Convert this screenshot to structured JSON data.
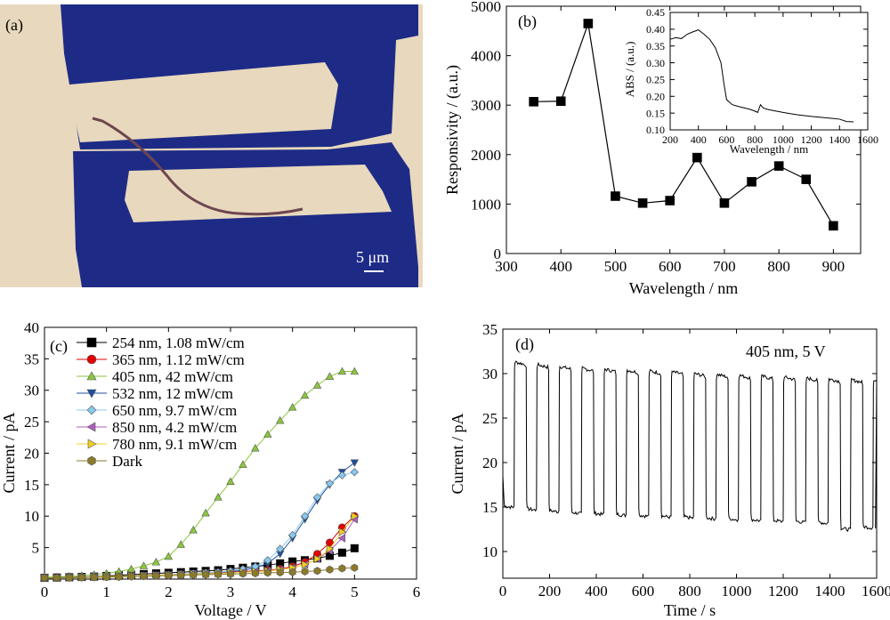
{
  "panels": {
    "a": {
      "tag": "(a)",
      "scale_bar_label": "5 μm"
    },
    "b": {
      "tag": "(b)"
    },
    "c": {
      "tag": "(c)"
    },
    "d": {
      "tag": "(d)",
      "annotation": "405 nm, 5 V"
    }
  },
  "colors": {
    "substrate": "#e8d8bd",
    "electrode": "#1e2b86",
    "wire": "#6d4650"
  },
  "chart_data": [
    {
      "panel": "b",
      "type": "scatter",
      "xlabel": "Wavelength / nm",
      "ylabel": "Responsivity / (a.u.)",
      "xlim": [
        300,
        950
      ],
      "ylim": [
        0,
        5000
      ],
      "xticks": [
        300,
        400,
        500,
        600,
        700,
        800,
        900
      ],
      "yticks": [
        0,
        1000,
        2000,
        3000,
        4000,
        5000
      ],
      "x": [
        350,
        400,
        450,
        500,
        550,
        600,
        650,
        700,
        750,
        800,
        850,
        900
      ],
      "y": [
        3070,
        3080,
        4650,
        1160,
        1020,
        1070,
        1940,
        1020,
        1450,
        1770,
        1500,
        560
      ],
      "connected": true,
      "marker": "square"
    },
    {
      "panel": "b-inset",
      "type": "line",
      "xlabel": "Wavelength / nm",
      "ylabel": "ABS / (a.u.)",
      "xlim": [
        200,
        1600
      ],
      "ylim": [
        0.1,
        0.45
      ],
      "xticks": [
        200,
        400,
        600,
        800,
        1000,
        1200,
        1400,
        1600
      ],
      "yticks": [
        0.1,
        0.15,
        0.2,
        0.25,
        0.3,
        0.35,
        0.4,
        0.45
      ],
      "x": [
        200,
        240,
        280,
        320,
        360,
        400,
        440,
        480,
        520,
        560,
        580,
        600,
        640,
        700,
        760,
        800,
        820,
        840,
        860,
        900,
        1000,
        1100,
        1200,
        1300,
        1350,
        1400,
        1450,
        1500
      ],
      "y": [
        0.37,
        0.375,
        0.372,
        0.385,
        0.392,
        0.398,
        0.385,
        0.37,
        0.345,
        0.3,
        0.24,
        0.19,
        0.175,
        0.168,
        0.162,
        0.156,
        0.152,
        0.175,
        0.165,
        0.16,
        0.152,
        0.145,
        0.14,
        0.136,
        0.134,
        0.132,
        0.125,
        0.124
      ]
    },
    {
      "panel": "c",
      "type": "line",
      "xlabel": "Voltage / V",
      "ylabel": "Current / pA",
      "xlim": [
        0,
        6
      ],
      "ylim": [
        0,
        40
      ],
      "xticks": [
        0,
        1,
        2,
        3,
        4,
        5,
        6
      ],
      "yticks": [
        5,
        10,
        15,
        20,
        25,
        30,
        35,
        40
      ],
      "legend_position": "top-left",
      "x": [
        0,
        0.2,
        0.4,
        0.6,
        0.8,
        1.0,
        1.2,
        1.4,
        1.6,
        1.8,
        2.0,
        2.2,
        2.4,
        2.6,
        2.8,
        3.0,
        3.2,
        3.4,
        3.6,
        3.8,
        4.0,
        4.2,
        4.4,
        4.6,
        4.8,
        5.0
      ],
      "series": [
        {
          "name": "254 nm, 1.08 mW/cm",
          "color": "#000000",
          "marker": "square",
          "values": [
            0.2,
            0.25,
            0.3,
            0.35,
            0.4,
            0.5,
            0.6,
            0.7,
            0.8,
            0.9,
            1.0,
            1.1,
            1.2,
            1.3,
            1.4,
            1.6,
            1.8,
            2.0,
            2.2,
            2.5,
            2.8,
            3.0,
            3.3,
            3.7,
            4.2,
            4.9
          ]
        },
        {
          "name": "365 nm, 1.12 mW/cm",
          "color": "#e00000",
          "marker": "circle",
          "values": [
            0.2,
            0.2,
            0.25,
            0.3,
            0.35,
            0.4,
            0.45,
            0.5,
            0.55,
            0.6,
            0.65,
            0.7,
            0.8,
            0.9,
            1.0,
            1.1,
            1.2,
            1.3,
            1.4,
            1.6,
            2.0,
            2.7,
            4.0,
            5.8,
            8.2,
            10.0
          ]
        },
        {
          "name": "405 nm, 42 mW/cm",
          "color": "#8cc63f",
          "marker": "triangle-up",
          "values": [
            0.3,
            0.35,
            0.45,
            0.55,
            0.7,
            0.9,
            1.2,
            1.6,
            2.1,
            2.7,
            3.6,
            5.5,
            7.8,
            10.5,
            13.0,
            15.5,
            18.2,
            20.8,
            23.0,
            25.2,
            27.3,
            29.2,
            30.8,
            32.2,
            33.0,
            33.0
          ]
        },
        {
          "name": "532 nm, 12 mW/cm",
          "color": "#1f4e9c",
          "marker": "triangle-down",
          "values": [
            0.2,
            0.2,
            0.25,
            0.3,
            0.35,
            0.4,
            0.45,
            0.5,
            0.55,
            0.6,
            0.7,
            0.8,
            0.9,
            1.0,
            1.1,
            1.2,
            1.4,
            1.8,
            2.5,
            4.0,
            6.5,
            9.5,
            12.5,
            15.0,
            17.0,
            18.5
          ]
        },
        {
          "name": "650 nm, 9.7 mW/cm",
          "color": "#88c8ee",
          "marker": "diamond",
          "values": [
            0.2,
            0.2,
            0.25,
            0.3,
            0.35,
            0.4,
            0.45,
            0.5,
            0.55,
            0.6,
            0.7,
            0.8,
            0.9,
            1.0,
            1.1,
            1.3,
            1.6,
            2.0,
            3.0,
            4.8,
            7.0,
            10.0,
            13.0,
            15.2,
            16.5,
            17.0
          ]
        },
        {
          "name": "850 nm, 4.2 mW/cm",
          "color": "#b05fbf",
          "marker": "triangle-left",
          "values": [
            0.2,
            0.2,
            0.25,
            0.3,
            0.35,
            0.4,
            0.45,
            0.5,
            0.55,
            0.6,
            0.65,
            0.7,
            0.8,
            0.85,
            0.9,
            1.0,
            1.1,
            1.2,
            1.3,
            1.5,
            1.8,
            2.3,
            3.2,
            4.5,
            6.5,
            9.5
          ]
        },
        {
          "name": "780 nm, 9.1 mW/cm",
          "color": "#f0d020",
          "marker": "triangle-right",
          "values": [
            0.2,
            0.2,
            0.25,
            0.3,
            0.35,
            0.4,
            0.45,
            0.5,
            0.55,
            0.6,
            0.65,
            0.7,
            0.8,
            0.85,
            0.9,
            1.0,
            1.1,
            1.2,
            1.3,
            1.5,
            1.8,
            2.3,
            3.2,
            4.8,
            7.5,
            10.0
          ]
        },
        {
          "name": "Dark",
          "color": "#8a7a2a",
          "marker": "hexagon",
          "values": [
            0.2,
            0.2,
            0.22,
            0.25,
            0.28,
            0.3,
            0.35,
            0.4,
            0.45,
            0.5,
            0.55,
            0.6,
            0.65,
            0.7,
            0.75,
            0.8,
            0.85,
            0.9,
            1.0,
            1.05,
            1.1,
            1.2,
            1.3,
            1.5,
            1.7,
            1.8
          ]
        }
      ]
    },
    {
      "panel": "d",
      "type": "line",
      "xlabel": "Time / s",
      "ylabel": "Current / pA",
      "xlim": [
        0,
        1600
      ],
      "ylim": [
        7,
        35
      ],
      "xticks": [
        0,
        200,
        400,
        600,
        800,
        1000,
        1200,
        1400,
        1600
      ],
      "yticks": [
        10,
        15,
        20,
        25,
        30,
        35
      ],
      "period_s": 96,
      "cycles": 17,
      "on_levels": [
        31.3,
        31.0,
        30.8,
        30.6,
        30.5,
        30.4,
        30.3,
        30.2,
        30.0,
        29.9,
        29.8,
        29.7,
        29.6,
        29.5,
        29.4,
        29.3,
        29.2
      ],
      "off_levels": [
        15.1,
        14.8,
        14.6,
        14.4,
        14.3,
        14.2,
        14.1,
        14.0,
        13.9,
        13.8,
        13.7,
        13.6,
        13.5,
        13.4,
        13.3,
        12.6,
        12.8
      ]
    }
  ]
}
